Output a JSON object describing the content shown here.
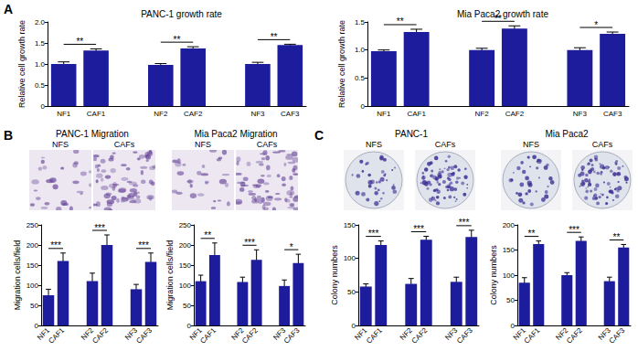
{
  "chart_data": [
    {
      "type": "bar",
      "title": "PANC-1 growth rate",
      "y_label": "Relative cell growth rate",
      "categories": [
        "NF1",
        "CAF1",
        null,
        "NF2",
        "CAF2",
        null,
        "NF3",
        "CAF3"
      ],
      "values": [
        1.0,
        1.32,
        null,
        0.98,
        1.37,
        null,
        1.0,
        1.45
      ],
      "errors": [
        0.05,
        0.04,
        null,
        0.03,
        0.04,
        null,
        0.04,
        0.02
      ],
      "color": "#1c1c9c",
      "ylim": [
        0,
        2
      ],
      "yticks": [
        0,
        0.5,
        {
          "value": 1,
          "label": "1.0"
        },
        1.5,
        {
          "value": 2,
          "label": "2.0"
        }
      ],
      "grid": false,
      "annotations": [
        {
          "text": "**",
          "between": [
            "NF1",
            "CAF1"
          ]
        },
        {
          "text": "**",
          "between": [
            "NF2",
            "CAF2"
          ]
        },
        {
          "text": "**",
          "between": [
            "NF3",
            "CAF3"
          ]
        }
      ]
    },
    {
      "type": "bar",
      "title": "Mia Paca2 growth rate",
      "y_label": "Relative cell growth rate",
      "categories": [
        "NF1",
        "CAF1",
        null,
        "NF2",
        "CAF2",
        null,
        "NF3",
        "CAF3"
      ],
      "values": [
        0.98,
        1.32,
        null,
        1.0,
        1.38,
        null,
        1.0,
        1.29
      ],
      "errors": [
        0.02,
        0.05,
        null,
        0.03,
        0.05,
        null,
        0.04,
        0.03
      ],
      "color": "#1c1c9c",
      "ylim": [
        0,
        1.5
      ],
      "yticks": [
        0,
        0.5,
        {
          "value": 1,
          "label": "1.0"
        },
        1.5
      ],
      "grid": false,
      "annotations": [
        {
          "text": "**",
          "between": [
            "NF1",
            "CAF1"
          ]
        },
        {
          "text": "**",
          "between": [
            "NF2",
            "CAF2"
          ]
        },
        {
          "text": "*",
          "between": [
            "NF3",
            "CAF3"
          ]
        }
      ]
    },
    {
      "type": "bar",
      "y_label": "Migration cells/field",
      "categories": [
        "NF1",
        "CAF1",
        null,
        "NF2",
        "CAF2",
        null,
        "NF3",
        "CAF3"
      ],
      "values": [
        75,
        160,
        null,
        110,
        200,
        null,
        90,
        158
      ],
      "errors": [
        15,
        20,
        null,
        20,
        25,
        null,
        12,
        22
      ],
      "color": "#1c1c9c",
      "ylim": [
        0,
        250
      ],
      "yticks": [
        0,
        50,
        100,
        150,
        200,
        250
      ],
      "grid": false,
      "annotations": [
        {
          "text": "***",
          "between": [
            "NF1",
            "CAF1"
          ]
        },
        {
          "text": "***",
          "between": [
            "NF2",
            "CAF2"
          ]
        },
        {
          "text": "***",
          "between": [
            "NF3",
            "CAF3"
          ]
        }
      ]
    },
    {
      "type": "bar",
      "y_label": "Migration cells/field",
      "categories": [
        "NF1",
        "CAF1",
        null,
        "NF2",
        "CAF2",
        null,
        "NF3",
        "CAF3"
      ],
      "values": [
        110,
        175,
        null,
        108,
        163,
        null,
        98,
        155
      ],
      "errors": [
        15,
        30,
        null,
        12,
        25,
        null,
        15,
        22
      ],
      "color": "#1c1c9c",
      "ylim": [
        0,
        250
      ],
      "yticks": [
        0,
        50,
        100,
        150,
        200,
        250
      ],
      "grid": false,
      "annotations": [
        {
          "text": "**",
          "between": [
            "NF1",
            "CAF1"
          ]
        },
        {
          "text": "***",
          "between": [
            "NF2",
            "CAF2"
          ]
        },
        {
          "text": "*",
          "between": [
            "NF3",
            "CAF3"
          ]
        }
      ]
    },
    {
      "type": "bar",
      "y_label": "Colony numbers",
      "categories": [
        "NF1",
        "CAF1",
        null,
        "NF2",
        "CAF2",
        null,
        "NF3",
        "CAF3"
      ],
      "values": [
        58,
        120,
        null,
        62,
        128,
        null,
        65,
        132
      ],
      "errors": [
        4,
        6,
        null,
        8,
        5,
        null,
        7,
        10
      ],
      "color": "#1c1c9c",
      "ylim": [
        0,
        150
      ],
      "yticks": [
        0,
        50,
        100,
        150
      ],
      "grid": false,
      "annotations": [
        {
          "text": "***",
          "between": [
            "NF1",
            "CAF1"
          ]
        },
        {
          "text": "***",
          "between": [
            "NF2",
            "CAF2"
          ]
        },
        {
          "text": "***",
          "between": [
            "NF3",
            "CAF3"
          ]
        }
      ]
    },
    {
      "type": "bar",
      "y_label": "Colony numbers",
      "categories": [
        "NF1",
        "CAF1",
        null,
        "NF2",
        "CAF2",
        null,
        "NF3",
        "CAF3"
      ],
      "values": [
        85,
        162,
        null,
        100,
        168,
        null,
        88,
        155
      ],
      "errors": [
        10,
        6,
        null,
        5,
        8,
        null,
        8,
        6
      ],
      "color": "#1c1c9c",
      "ylim": [
        0,
        200
      ],
      "yticks": [
        0,
        50,
        100,
        150,
        200
      ],
      "grid": false,
      "annotations": [
        {
          "text": "**",
          "between": [
            "NF1",
            "CAF1"
          ]
        },
        {
          "text": "***",
          "between": [
            "NF2",
            "CAF2"
          ]
        },
        {
          "text": "**",
          "between": [
            "NF3",
            "CAF3"
          ]
        }
      ]
    }
  ],
  "panels": [
    {
      "letter": "A"
    },
    {
      "letter": "B",
      "images": [
        {
          "title": "PANC-1 Migration",
          "captions": [
            "NFS",
            "CAFs"
          ]
        },
        {
          "title": "Mia Paca2 Migration",
          "captions": [
            "NFS",
            "CAFs"
          ]
        }
      ]
    },
    {
      "letter": "C",
      "images": [
        {
          "title": "PANC-1",
          "captions": [
            "NFS",
            "CAFs"
          ]
        },
        {
          "title": "Mia Paca2",
          "captions": [
            "NFS",
            "CAFs"
          ]
        }
      ]
    }
  ]
}
